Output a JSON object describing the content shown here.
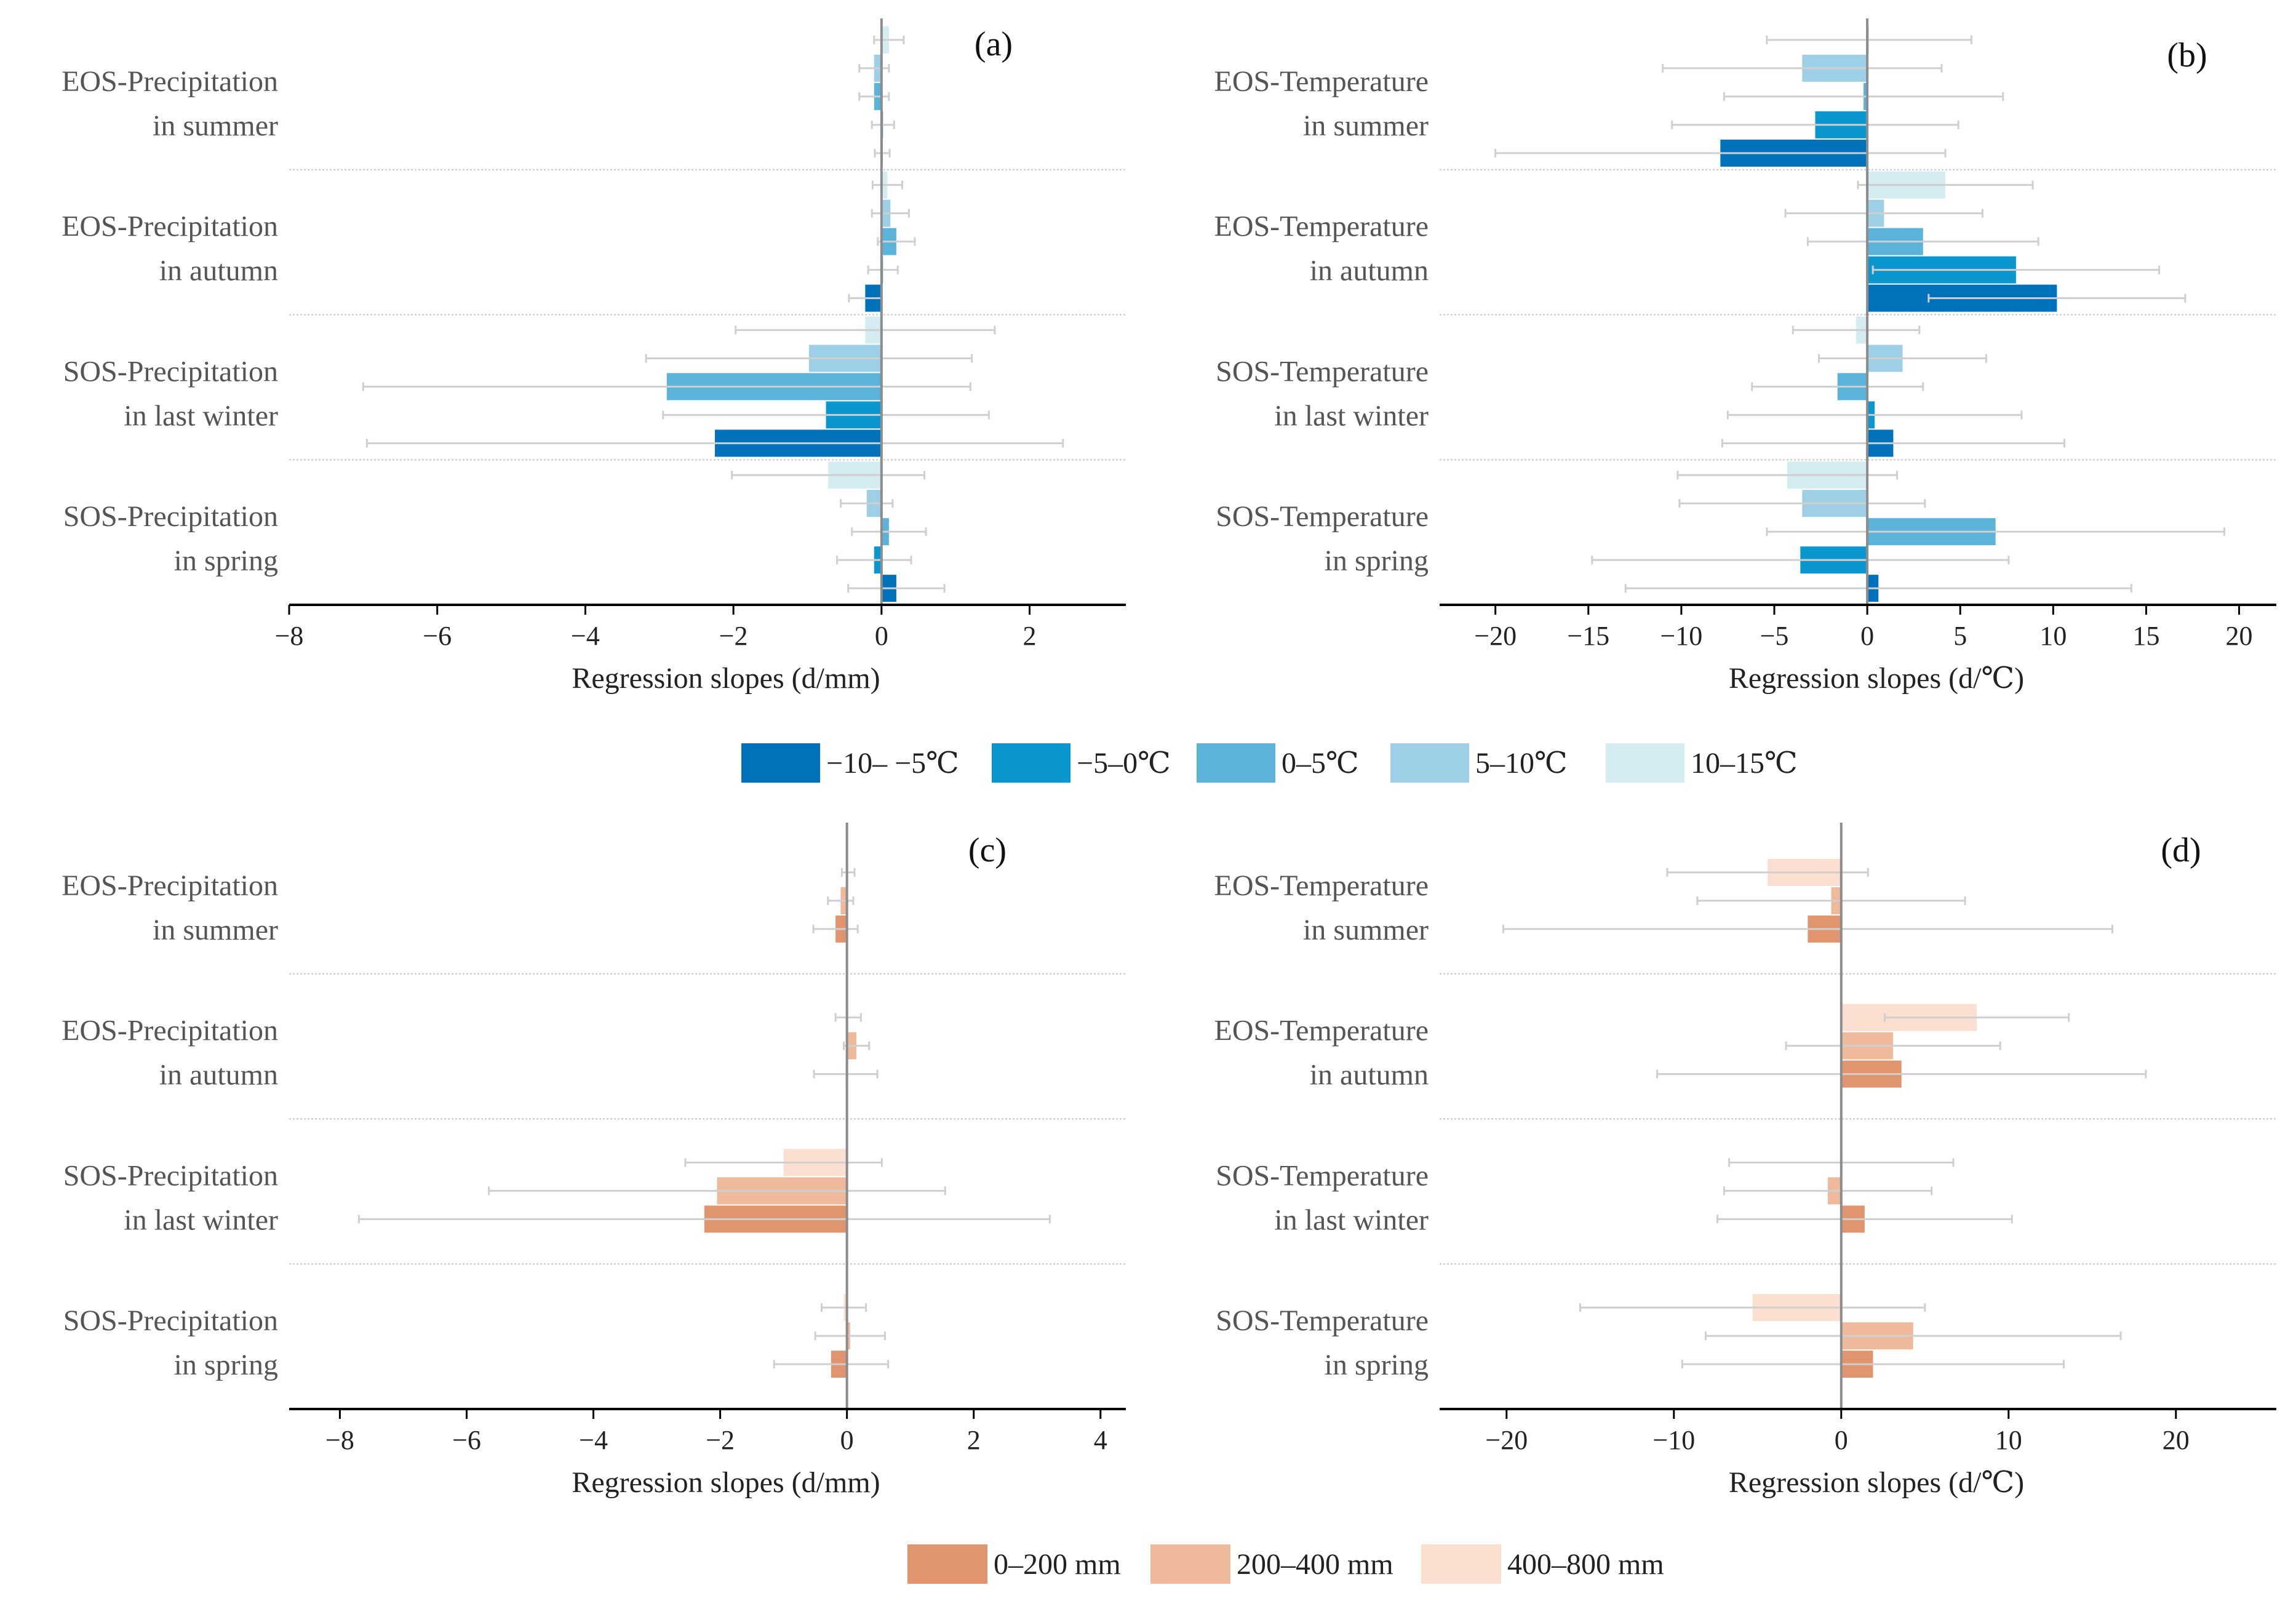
{
  "legend_temperature": {
    "entries": [
      {
        "label": "−10– −5℃",
        "color": "#0071bb"
      },
      {
        "label": "−5–0℃",
        "color": "#0a97cf"
      },
      {
        "label": "0–5℃",
        "color": "#5cb3da"
      },
      {
        "label": "5–10℃",
        "color": "#9dd0e6"
      },
      {
        "label": "10–15℃",
        "color": "#d5ecf2"
      }
    ]
  },
  "legend_precipitation": {
    "entries": [
      {
        "label": "0–200 mm",
        "color": "#e0956e"
      },
      {
        "label": "200–400 mm",
        "color": "#efb99c"
      },
      {
        "label": "400–800 mm",
        "color": "#fbdfd1"
      }
    ]
  },
  "chart_data": [
    {
      "panel": "(a)",
      "type": "bar",
      "orientation": "horizontal",
      "xlabel": "Regression slopes (d/mm)",
      "xlim": [
        -8,
        3.3
      ],
      "xticks": [
        -8,
        -6,
        -4,
        -2,
        0,
        2
      ],
      "tick_labels": [
        "−8",
        "−6",
        "−4",
        "−2",
        "0",
        "2"
      ],
      "legend": "temperature",
      "groups": [
        {
          "label": [
            "EOS-Precipitation",
            "in summer"
          ],
          "bars": [
            {
              "value": 0.1,
              "error": 0.2,
              "color": 4
            },
            {
              "value": -0.1,
              "error": 0.2,
              "color": 3
            },
            {
              "value": -0.1,
              "error": 0.2,
              "color": 2
            },
            {
              "value": 0.02,
              "error": 0.15,
              "color": 1
            },
            {
              "value": 0.01,
              "error": 0.1,
              "color": 0
            }
          ]
        },
        {
          "label": [
            "EOS-Precipitation",
            "in autumn"
          ],
          "bars": [
            {
              "value": 0.08,
              "error": 0.2,
              "color": 4
            },
            {
              "value": 0.12,
              "error": 0.25,
              "color": 3
            },
            {
              "value": 0.2,
              "error": 0.25,
              "color": 2
            },
            {
              "value": 0.02,
              "error": 0.2,
              "color": 1
            },
            {
              "value": -0.22,
              "error": 0.22,
              "color": 0
            }
          ]
        },
        {
          "label": [
            "SOS-Precipitation",
            "in last winter"
          ],
          "bars": [
            {
              "value": -0.22,
              "error": 1.75,
              "color": 4
            },
            {
              "value": -0.98,
              "error": 2.2,
              "color": 3
            },
            {
              "value": -2.9,
              "error": 4.1,
              "color": 2
            },
            {
              "value": -0.75,
              "error": 2.2,
              "color": 1
            },
            {
              "value": -2.25,
              "error": 4.7,
              "color": 0
            }
          ]
        },
        {
          "label": [
            "SOS-Precipitation",
            "in spring"
          ],
          "bars": [
            {
              "value": -0.72,
              "error": 1.3,
              "color": 4
            },
            {
              "value": -0.2,
              "error": 0.35,
              "color": 3
            },
            {
              "value": 0.1,
              "error": 0.5,
              "color": 2
            },
            {
              "value": -0.1,
              "error": 0.5,
              "color": 1
            },
            {
              "value": 0.2,
              "error": 0.65,
              "color": 0
            }
          ]
        }
      ]
    },
    {
      "panel": "(b)",
      "type": "bar",
      "orientation": "horizontal",
      "xlabel": "Regression slopes (d/℃)",
      "xlim": [
        -23,
        22
      ],
      "xticks": [
        -20,
        -15,
        -10,
        -5,
        0,
        5,
        10,
        15,
        20
      ],
      "tick_labels": [
        "−20",
        "−15",
        "−10",
        "−5",
        "0",
        "5",
        "10",
        "15",
        "20"
      ],
      "legend": "temperature",
      "groups": [
        {
          "label": [
            "EOS-Temperature",
            "in summer"
          ],
          "bars": [
            {
              "value": 0.1,
              "error": 5.5,
              "color": 4
            },
            {
              "value": -3.5,
              "error": 7.5,
              "color": 3
            },
            {
              "value": -0.2,
              "error": 7.5,
              "color": 2
            },
            {
              "value": -2.8,
              "error": 7.7,
              "color": 1
            },
            {
              "value": -7.9,
              "error": 12.1,
              "color": 0
            }
          ]
        },
        {
          "label": [
            "EOS-Temperature",
            "in autumn"
          ],
          "bars": [
            {
              "value": 4.2,
              "error": 4.7,
              "color": 4
            },
            {
              "value": 0.9,
              "error": 5.3,
              "color": 3
            },
            {
              "value": 3.0,
              "error": 6.2,
              "color": 2
            },
            {
              "value": 8.0,
              "error": 7.7,
              "color": 1
            },
            {
              "value": 10.2,
              "error": 6.9,
              "color": 0
            }
          ]
        },
        {
          "label": [
            "SOS-Temperature",
            "in last winter"
          ],
          "bars": [
            {
              "value": -0.6,
              "error": 3.4,
              "color": 4
            },
            {
              "value": 1.9,
              "error": 4.5,
              "color": 3
            },
            {
              "value": -1.6,
              "error": 4.6,
              "color": 2
            },
            {
              "value": 0.4,
              "error": 7.9,
              "color": 1
            },
            {
              "value": 1.4,
              "error": 9.2,
              "color": 0
            }
          ]
        },
        {
          "label": [
            "SOS-Temperature",
            "in spring"
          ],
          "bars": [
            {
              "value": -4.3,
              "error": 5.9,
              "color": 4
            },
            {
              "value": -3.5,
              "error": 6.6,
              "color": 3
            },
            {
              "value": 6.9,
              "error": 12.3,
              "color": 2
            },
            {
              "value": -3.6,
              "error": 11.2,
              "color": 1
            },
            {
              "value": 0.6,
              "error": 13.6,
              "color": 0
            }
          ]
        }
      ]
    },
    {
      "panel": "(c)",
      "type": "bar",
      "orientation": "horizontal",
      "xlabel": "Regression slopes (d/mm)",
      "xlim": [
        -8.8,
        4.4
      ],
      "xticks": [
        -8,
        -6,
        -4,
        -2,
        0,
        2,
        4
      ],
      "tick_labels": [
        "−8",
        "−6",
        "−4",
        "−2",
        "0",
        "2",
        "4"
      ],
      "legend": "precipitation",
      "groups": [
        {
          "label": [
            "EOS-Precipitation",
            "in summer"
          ],
          "bars": [
            {
              "value": 0.02,
              "error": 0.1,
              "color": 2
            },
            {
              "value": -0.1,
              "error": 0.2,
              "color": 1
            },
            {
              "value": -0.18,
              "error": 0.35,
              "color": 0
            }
          ]
        },
        {
          "label": [
            "EOS-Precipitation",
            "in autumn"
          ],
          "bars": [
            {
              "value": 0.02,
              "error": 0.2,
              "color": 2
            },
            {
              "value": 0.15,
              "error": 0.2,
              "color": 1
            },
            {
              "value": -0.02,
              "error": 0.5,
              "color": 0
            }
          ]
        },
        {
          "label": [
            "SOS-Precipitation",
            "in last winter"
          ],
          "bars": [
            {
              "value": -1.0,
              "error": 1.55,
              "color": 2
            },
            {
              "value": -2.05,
              "error": 3.6,
              "color": 1
            },
            {
              "value": -2.25,
              "error": 5.45,
              "color": 0
            }
          ]
        },
        {
          "label": [
            "SOS-Precipitation",
            "in spring"
          ],
          "bars": [
            {
              "value": -0.05,
              "error": 0.35,
              "color": 2
            },
            {
              "value": 0.05,
              "error": 0.55,
              "color": 1
            },
            {
              "value": -0.25,
              "error": 0.9,
              "color": 0
            }
          ]
        }
      ]
    },
    {
      "panel": "(d)",
      "type": "bar",
      "orientation": "horizontal",
      "xlabel": "Regression slopes (d/℃)",
      "xlim": [
        -24,
        26
      ],
      "xticks": [
        -20,
        -10,
        0,
        10,
        20
      ],
      "tick_labels": [
        "−20",
        "−10",
        "0",
        "10",
        "20"
      ],
      "legend": "precipitation",
      "groups": [
        {
          "label": [
            "EOS-Temperature",
            "in summer"
          ],
          "bars": [
            {
              "value": -4.4,
              "error": 6.0,
              "color": 2
            },
            {
              "value": -0.6,
              "error": 8.0,
              "color": 1
            },
            {
              "value": -2.0,
              "error": 18.2,
              "color": 0
            }
          ]
        },
        {
          "label": [
            "EOS-Temperature",
            "in autumn"
          ],
          "bars": [
            {
              "value": 8.1,
              "error": 5.5,
              "color": 2
            },
            {
              "value": 3.1,
              "error": 6.4,
              "color": 1
            },
            {
              "value": 3.6,
              "error": 14.6,
              "color": 0
            }
          ]
        },
        {
          "label": [
            "SOS-Temperature",
            "in last winter"
          ],
          "bars": [
            {
              "value": 0.0,
              "error": 6.7,
              "color": 2
            },
            {
              "value": -0.8,
              "error": 6.2,
              "color": 1
            },
            {
              "value": 1.4,
              "error": 8.8,
              "color": 0
            }
          ]
        },
        {
          "label": [
            "SOS-Temperature",
            "in spring"
          ],
          "bars": [
            {
              "value": -5.3,
              "error": 10.3,
              "color": 2
            },
            {
              "value": 4.3,
              "error": 12.4,
              "color": 1
            },
            {
              "value": 1.9,
              "error": 11.4,
              "color": 0
            }
          ]
        }
      ]
    }
  ]
}
